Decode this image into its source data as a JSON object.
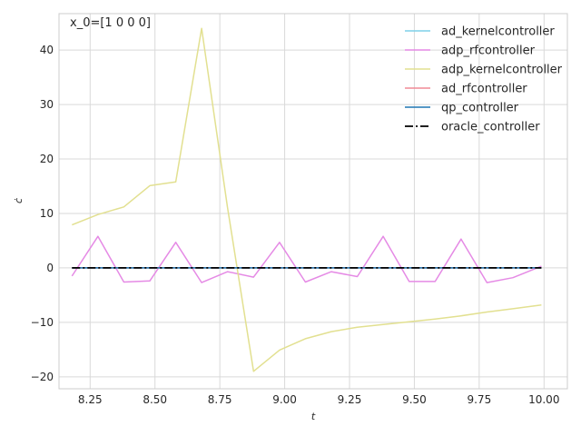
{
  "chart_data": {
    "type": "line",
    "annotation": "x_0=[1 0 0 0]",
    "xlabel": "t",
    "ylabel": "ċ",
    "xlim": [
      8.13,
      10.09
    ],
    "ylim": [
      -22.2,
      46.7
    ],
    "xticks": [
      8.25,
      8.5,
      8.75,
      9.0,
      9.25,
      9.5,
      9.75,
      10.0
    ],
    "xtick_labels": [
      "8.25",
      "8.50",
      "8.75",
      "9.00",
      "9.25",
      "9.50",
      "9.75",
      "10.00"
    ],
    "yticks": [
      -20,
      -10,
      0,
      10,
      20,
      30,
      40
    ],
    "ytick_labels": [
      "−20",
      "−10",
      "0",
      "10",
      "20",
      "30",
      "40"
    ],
    "grid": true,
    "legend_position": "top-right",
    "x": [
      8.18,
      8.28,
      8.38,
      8.48,
      8.58,
      8.68,
      8.78,
      8.88,
      8.98,
      9.08,
      9.18,
      9.28,
      9.38,
      9.48,
      9.58,
      9.68,
      9.78,
      9.88,
      9.99
    ],
    "series": [
      {
        "name": "ad_kernelcontroller",
        "color": "#7fd1e8",
        "style": "solid",
        "values": [
          0,
          0,
          0,
          0,
          0,
          0,
          0,
          0,
          0,
          0,
          0,
          0,
          0,
          0,
          0,
          0,
          0,
          0,
          0
        ]
      },
      {
        "name": "adp_rfcontroller",
        "color": "#e58ae5",
        "style": "solid",
        "values": [
          -1.5,
          5.8,
          -2.6,
          -2.4,
          4.7,
          -2.7,
          -0.7,
          -1.7,
          4.7,
          -2.6,
          -0.7,
          -1.6,
          5.8,
          -2.5,
          -2.5,
          5.3,
          -2.7,
          -1.8,
          0.3
        ]
      },
      {
        "name": "adp_kernelcontroller",
        "color": "#e2e090",
        "style": "solid",
        "values": [
          7.9,
          9.8,
          11.2,
          15.1,
          15.8,
          44.0,
          11.0,
          -19.0,
          -15.1,
          -13.0,
          -11.7,
          -10.9,
          -10.4,
          -9.9,
          -9.4,
          -8.8,
          -8.1,
          -7.5,
          -6.8
        ]
      },
      {
        "name": "ad_rfcontroller",
        "color": "#f08a96",
        "style": "solid",
        "values": [
          0,
          0,
          0,
          0,
          0,
          0,
          0,
          0,
          0,
          0,
          0,
          0,
          0,
          0,
          0,
          0,
          0,
          0,
          0
        ]
      },
      {
        "name": "qp_controller",
        "color": "#1f77b4",
        "style": "solid",
        "values": [
          0,
          0,
          0,
          0,
          0,
          0,
          0,
          0,
          0,
          0,
          0,
          0,
          0,
          0,
          0,
          0,
          0,
          0,
          0
        ]
      },
      {
        "name": "oracle_controller",
        "color": "#000000",
        "style": "dashdot",
        "values": [
          0,
          0,
          0,
          0,
          0,
          0,
          0,
          0,
          0,
          0,
          0,
          0,
          0,
          0,
          0,
          0,
          0,
          0,
          0
        ]
      }
    ]
  }
}
